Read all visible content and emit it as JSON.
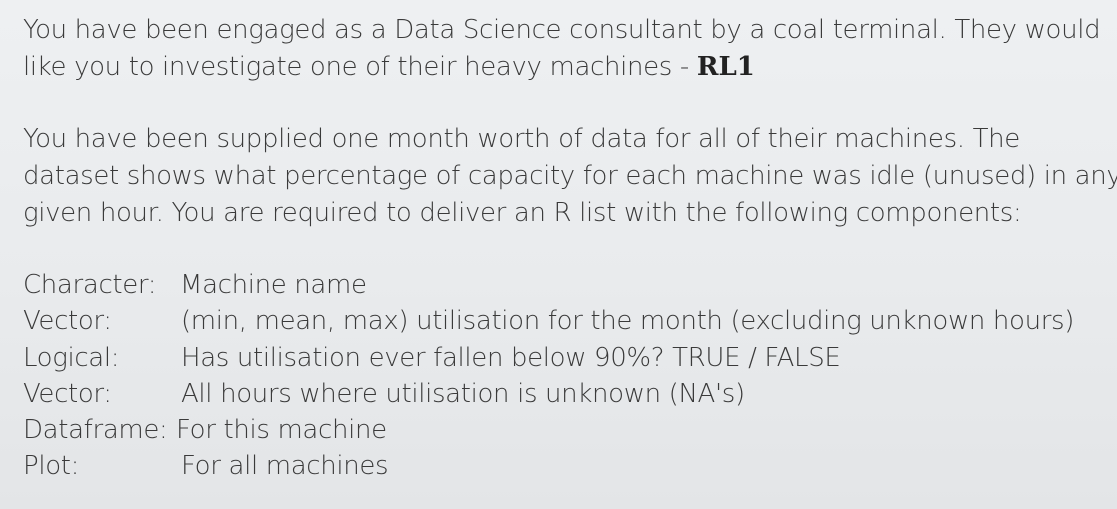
{
  "intro": {
    "line1": "You have been engaged as a Data Science consultant by a coal terminal. They would",
    "line2_prefix": "like you to investigate one of their heavy machines - ",
    "machine": "RL1"
  },
  "task": {
    "line1": "You have been supplied one month worth of data for all of their machines. The",
    "line2": "dataset shows what percentage of capacity for each machine was idle (unused) in any",
    "line3": "given hour.  You are required to deliver an R list with the following components:"
  },
  "components": [
    {
      "label": "Character:",
      "description": "Machine name"
    },
    {
      "label": "Vector:",
      "description": "(min, mean, max) utilisation for the month (excluding unknown hours)"
    },
    {
      "label": "Logical:",
      "description": "Has utilisation ever fallen below 90%?   TRUE / FALSE"
    },
    {
      "label": "Vector:",
      "description": "All hours where utilisation is unknown (NA's)"
    },
    {
      "label": "Dataframe:",
      "description": "For this machine"
    },
    {
      "label": "Plot:",
      "description": "For all machines"
    }
  ]
}
